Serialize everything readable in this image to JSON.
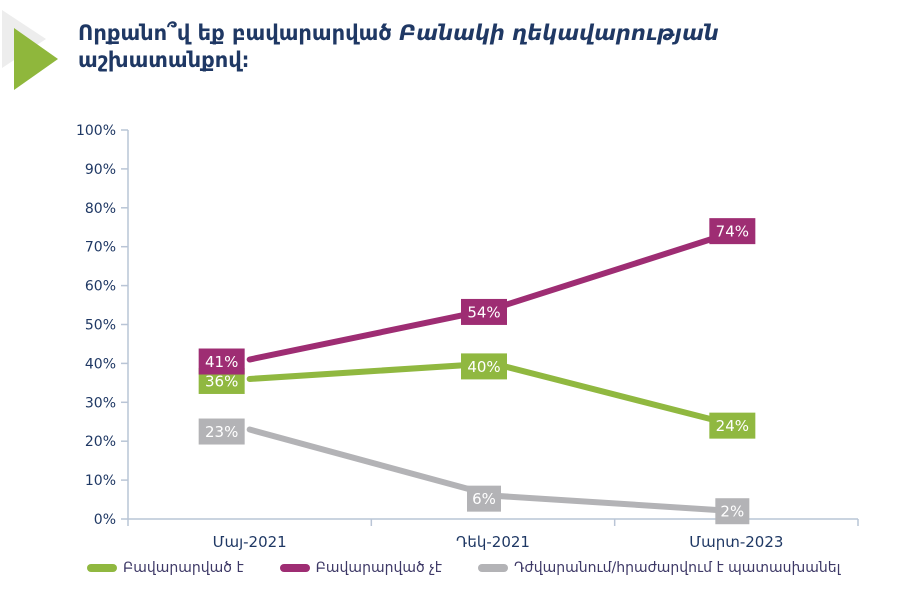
{
  "header": {
    "title_regular": "Որքանո՞վ եք բավարարված ",
    "title_italic": "Բանակի ղեկավարության",
    "title_line2": "աշխատանքով։"
  },
  "colors": {
    "title_text": "#1f3864",
    "axis_text": "#1f3864",
    "axis_line": "#b9c5d6",
    "legend_text": "#3d3866",
    "accent_arrow_green": "#8fb73c",
    "accent_arrow_shadow": "#ededed",
    "data_label_text": "#ffffff"
  },
  "chart_data": {
    "type": "line",
    "title": "Որքանո՞վ եք բավարարված Բանակի ղեկավարության աշխատանքով։",
    "categories": [
      "Մայ-2021",
      "Դեկ-2021",
      "Մարտ-2023"
    ],
    "series": [
      {
        "name": "Բավարարված է",
        "values": [
          36,
          40,
          24
        ],
        "color": "#90b840"
      },
      {
        "name": "Բավարարված չէ",
        "values": [
          41,
          54,
          74
        ],
        "color": "#9e2d73"
      },
      {
        "name": "Դժվարանում/հրաժարվում է պատասխանել",
        "values": [
          23,
          6,
          2
        ],
        "color": "#b3b3b6"
      }
    ],
    "data_labels": [
      [
        "36%",
        "40%",
        "24%"
      ],
      [
        "41%",
        "54%",
        "74%"
      ],
      [
        "23%",
        "6%",
        "2%"
      ]
    ],
    "xlabel": "",
    "ylabel": "",
    "ylim": [
      0,
      100
    ],
    "y_tick_labels": [
      "0%",
      "10%",
      "20%",
      "30%",
      "40%",
      "50%",
      "60%",
      "70%",
      "80%",
      "90%",
      "100%"
    ],
    "grid": false,
    "legend_position": "bottom"
  }
}
